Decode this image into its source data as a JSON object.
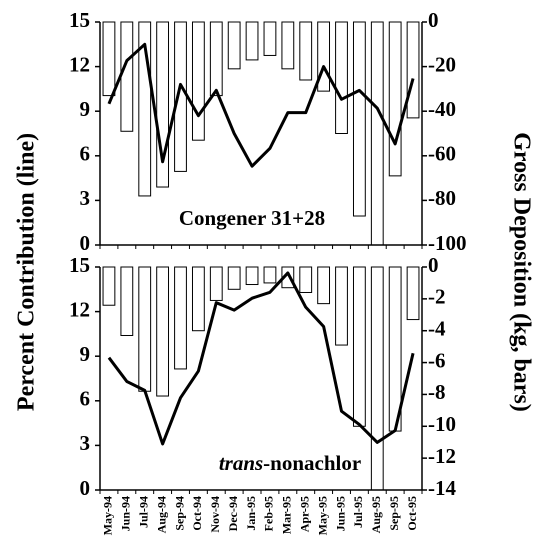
{
  "chart_data": [
    {
      "type": "combo",
      "ylabel": "Percent Contribution (line)",
      "y2label": "Gross Deposition (kg, bars)",
      "annotation": {
        "text": "Congener 31+28"
      },
      "ylim": [
        0,
        15
      ],
      "yticks": [
        0,
        3,
        6,
        9,
        12,
        15
      ],
      "y2lim": [
        -100,
        0
      ],
      "y2ticks": [
        0,
        -20,
        -40,
        -60,
        -80,
        -100
      ],
      "bars": {
        "axis": "y2",
        "color": "#ffffff",
        "values": [
          -33,
          -49,
          -78,
          -74,
          -67,
          -53,
          -33,
          -21,
          -17,
          -15,
          -21,
          -26,
          -31,
          -50,
          -87,
          -100,
          -69,
          -43
        ]
      },
      "line": {
        "color": "#000000",
        "values": [
          9.5,
          12.4,
          13.5,
          5.6,
          10.8,
          8.7,
          10.4,
          7.5,
          5.3,
          6.5,
          8.9,
          8.9,
          12.0,
          9.8,
          10.4,
          9.2,
          6.8,
          11.2
        ]
      }
    },
    {
      "type": "combo",
      "annotation": {
        "italic": "trans",
        "text": "-nonachlor"
      },
      "categories": [
        "May-94",
        "Jun-94",
        "Jul-94",
        "Aug-94",
        "Sep-94",
        "Oct-94",
        "Nov-94",
        "Dec-94",
        "Jan-95",
        "Feb-95",
        "Mar-95",
        "Apr-95",
        "May-95",
        "Jun-95",
        "Jul-95",
        "Aug-95",
        "Sep-95",
        "Oct-95"
      ],
      "ylim": [
        0,
        15
      ],
      "yticks": [
        0,
        3,
        6,
        9,
        12,
        15
      ],
      "y2lim": [
        -14,
        0
      ],
      "y2ticks": [
        0,
        -2,
        -4,
        -6,
        -8,
        -10,
        -12,
        -14
      ],
      "bars": {
        "axis": "y2",
        "color": "#ffffff",
        "values": [
          -2.4,
          -4.3,
          -7.8,
          -8.1,
          -6.4,
          -4.0,
          -2.1,
          -1.4,
          -1.1,
          -1.0,
          -1.3,
          -1.6,
          -2.3,
          -4.9,
          -10.0,
          -14,
          -10.3,
          -3.3
        ]
      },
      "line": {
        "color": "#000000",
        "values": [
          8.9,
          7.3,
          6.7,
          3.1,
          6.2,
          8.0,
          12.6,
          12.1,
          12.9,
          13.3,
          14.6,
          12.3,
          11.0,
          5.3,
          4.4,
          3.2,
          4.0,
          9.2
        ]
      }
    }
  ]
}
